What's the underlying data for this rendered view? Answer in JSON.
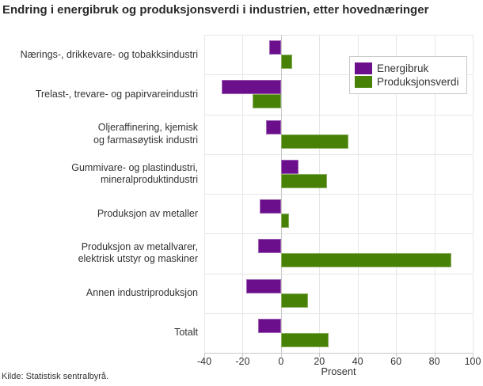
{
  "title": "Endring i energibruk og produksjonsverdi i industrien, etter hovednæringer",
  "source": "Kilde: Statistisk sentralbyrå.",
  "chart_data": {
    "type": "bar",
    "orientation": "horizontal",
    "title": "Endring i energibruk og produksjonsverdi i industrien, etter hovednæringer",
    "categories": [
      "Nærings-, drikkevare- og tobakksindustri",
      "Trelast-, trevare- og papirvareindustri",
      "Oljeraffinering, kjemisk\nog farmasøytisk industri",
      "Gummivare- og plastindustri,\nmineralproduktindustri",
      "Produksjon av metaller",
      "Produksjon av metallvarer,\nelektrisk utstyr og maskiner",
      "Annen industriproduksjon",
      "Totalt"
    ],
    "series": [
      {
        "name": "Energibruk",
        "color": "#6b0f8c",
        "values": [
          -6,
          -31,
          -8,
          9,
          -11,
          -12,
          -18,
          -12
        ]
      },
      {
        "name": "Produksjonsverdi",
        "color": "#478105",
        "values": [
          6,
          -15,
          35,
          24,
          4,
          89,
          14,
          25
        ]
      }
    ],
    "xlabel": "Prosent",
    "xlim": [
      -40,
      100
    ],
    "xticks": [
      -40,
      -20,
      0,
      20,
      40,
      60,
      80,
      100
    ],
    "grid": true,
    "legend_position": "top-right",
    "grid_color": "#e6e6e6",
    "zero_line_color": "#c9c9c9"
  }
}
